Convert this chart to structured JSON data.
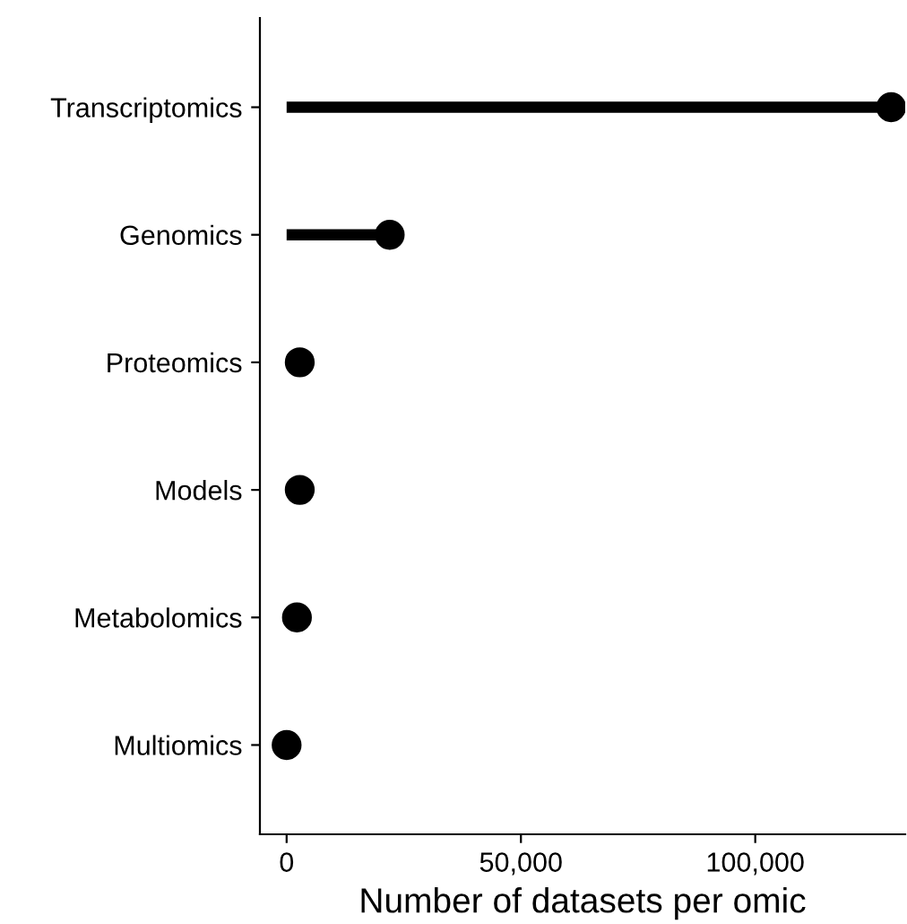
{
  "chart_data": {
    "type": "lollipop",
    "orientation": "horizontal",
    "categories": [
      "Transcriptomics",
      "Genomics",
      "Proteomics",
      "Models",
      "Metabolomics",
      "Multiomics"
    ],
    "values": [
      129000,
      22000,
      2800,
      2800,
      2200,
      0
    ],
    "color": "#000000",
    "xlabel": "Number of datasets per omic",
    "xlim": [
      -5700,
      132000
    ],
    "xticks": [
      {
        "value": 0,
        "label": "0"
      },
      {
        "value": 50000,
        "label": "50,000"
      },
      {
        "value": 100000,
        "label": "100,000"
      }
    ],
    "marker": "circle",
    "grid": false,
    "legend": false
  }
}
